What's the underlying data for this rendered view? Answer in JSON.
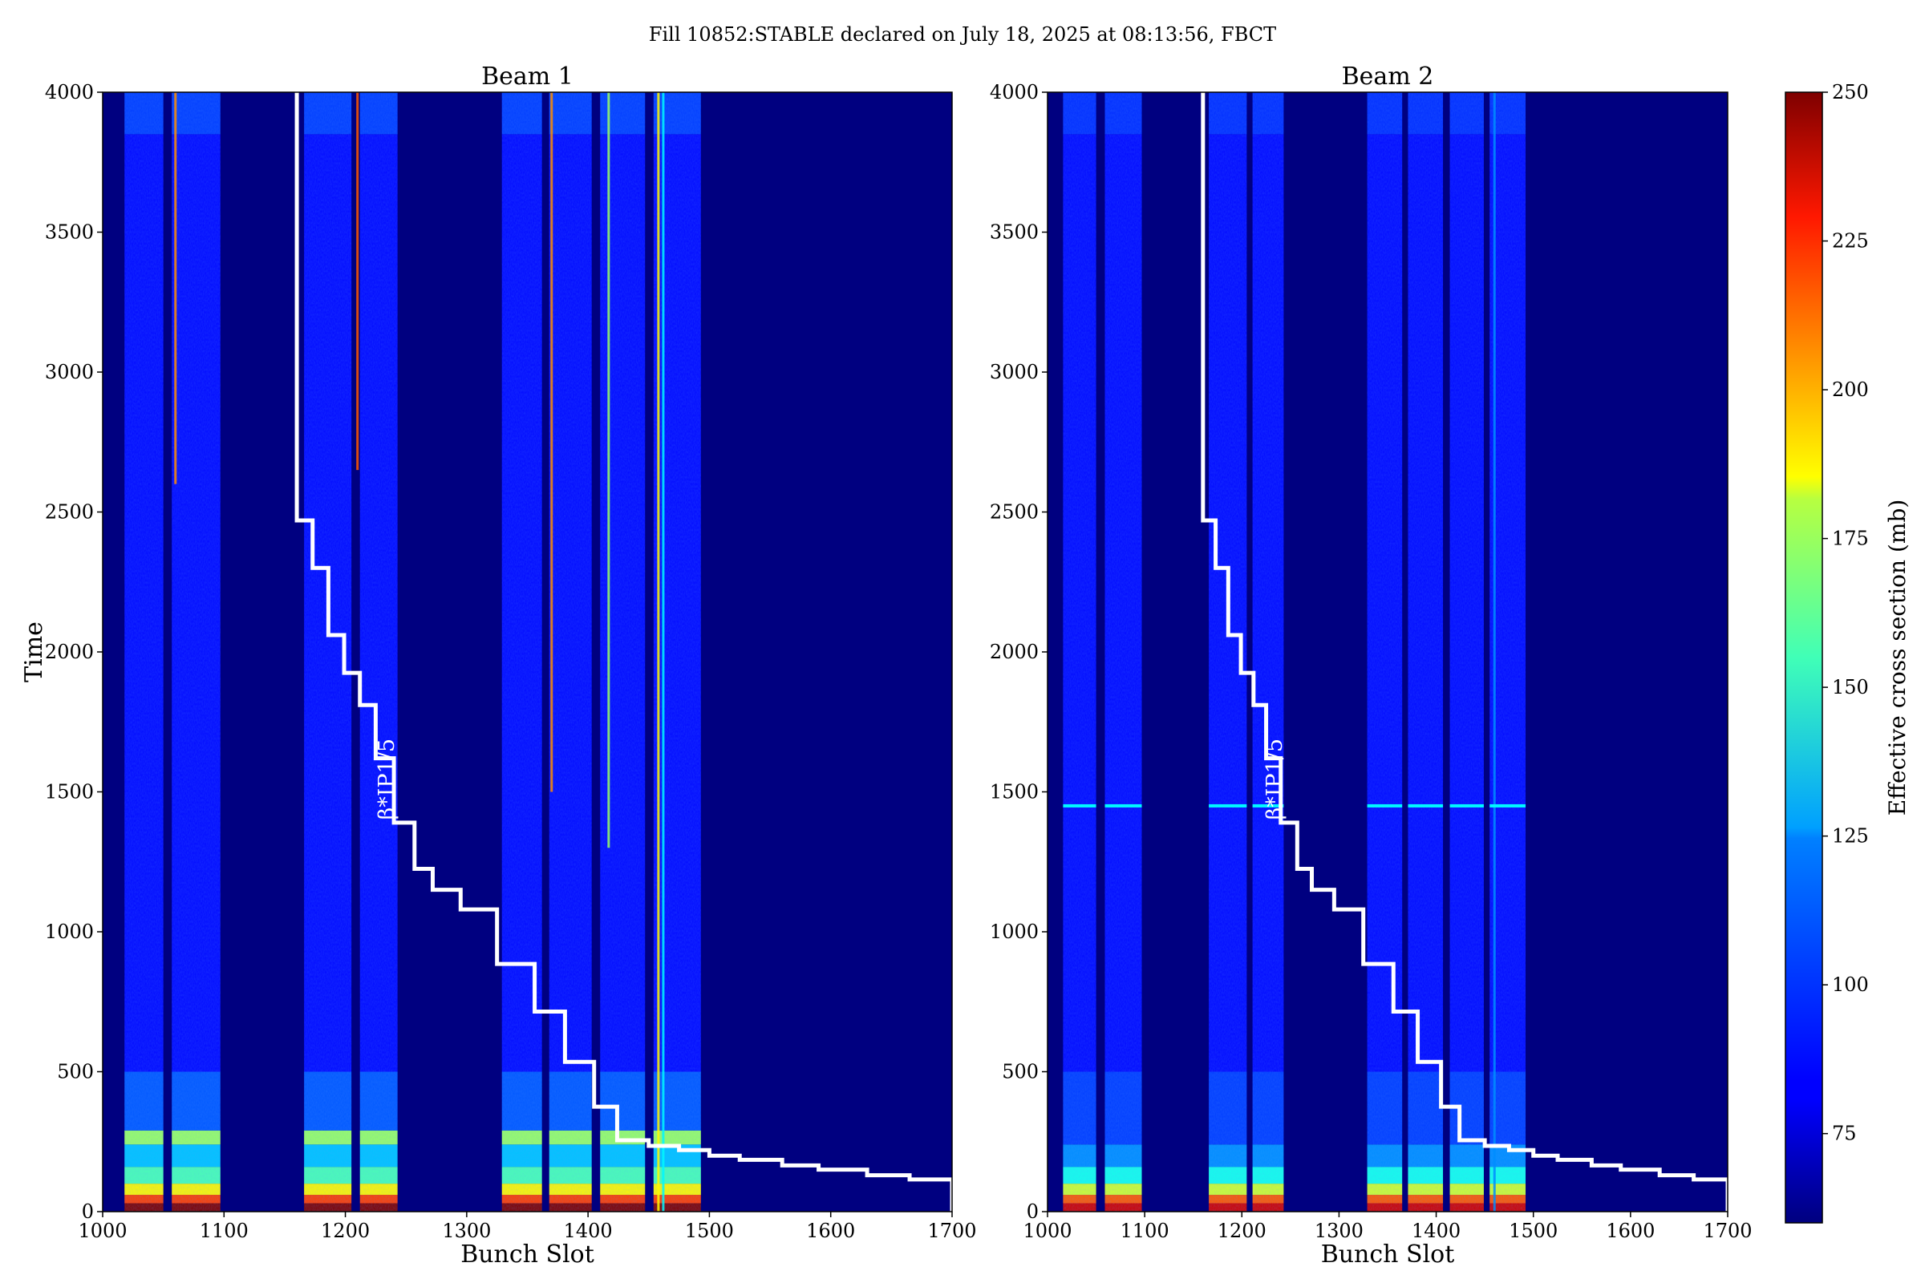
{
  "suptitle": "Fill 10852:STABLE declared on July 18, 2025 at 08:13:56, FBCT",
  "chart_data": {
    "type": "heatmap",
    "xlabel": "Bunch Slot",
    "ylabel": "Time",
    "xlim": [
      1000,
      1700
    ],
    "ylim": [
      0,
      4000
    ],
    "xticks": [
      "1000",
      "1100",
      "1200",
      "1300",
      "1400",
      "1500",
      "1600",
      "1700"
    ],
    "yticks": [
      "0",
      "500",
      "1000",
      "1500",
      "2000",
      "2500",
      "3000",
      "3500",
      "4000"
    ],
    "colormap": "jet",
    "background_color": "#000080",
    "colorbar": {
      "label": "Effective cross section (mb)",
      "range": [
        60,
        250
      ],
      "ticks": [
        "75",
        "100",
        "125",
        "150",
        "175",
        "200",
        "225",
        "250"
      ]
    },
    "beta_label": "β*IP1/5",
    "beta_curve": {
      "line_color": "#ffffff",
      "steps": [
        {
          "time": 4000,
          "slot": 1160
        },
        {
          "time": 2470,
          "slot": 1173
        },
        {
          "time": 2300,
          "slot": 1186
        },
        {
          "time": 2060,
          "slot": 1199
        },
        {
          "time": 1925,
          "slot": 1212
        },
        {
          "time": 1810,
          "slot": 1225
        },
        {
          "time": 1620,
          "slot": 1240
        },
        {
          "time": 1390,
          "slot": 1257
        },
        {
          "time": 1225,
          "slot": 1272
        },
        {
          "time": 1150,
          "slot": 1295
        },
        {
          "time": 1080,
          "slot": 1325
        },
        {
          "time": 885,
          "slot": 1356
        },
        {
          "time": 715,
          "slot": 1381
        },
        {
          "time": 535,
          "slot": 1405
        },
        {
          "time": 375,
          "slot": 1424
        },
        {
          "time": 255,
          "slot": 1450
        },
        {
          "time": 235,
          "slot": 1475
        },
        {
          "time": 220,
          "slot": 1500
        },
        {
          "time": 200,
          "slot": 1525
        },
        {
          "time": 185,
          "slot": 1560
        },
        {
          "time": 165,
          "slot": 1590
        },
        {
          "time": 150,
          "slot": 1630
        },
        {
          "time": 130,
          "slot": 1665
        },
        {
          "time": 115,
          "slot": 1700
        },
        {
          "time": 0,
          "slot": 1700
        }
      ]
    },
    "panels": [
      {
        "title": "Beam 1",
        "trains": [
          [
            1018,
            1050
          ],
          [
            1057,
            1097
          ],
          [
            1166,
            1205
          ],
          [
            1212,
            1243
          ],
          [
            1329,
            1362
          ],
          [
            1368,
            1403
          ],
          [
            1410,
            1447
          ],
          [
            1454,
            1493
          ]
        ],
        "hot_streaks": [
          {
            "slot": 1060,
            "from": 2600,
            "to": 4000,
            "value": 200
          },
          {
            "slot": 1210,
            "from": 2650,
            "to": 4000,
            "value": 210
          },
          {
            "slot": 1370,
            "from": 1500,
            "to": 4000,
            "value": 200
          },
          {
            "slot": 1417,
            "from": 1300,
            "to": 4000,
            "value": 160
          },
          {
            "slot": 1458,
            "from": 0,
            "to": 4000,
            "value": 180
          },
          {
            "slot": 1462,
            "from": 0,
            "to": 4000,
            "value": 130
          }
        ],
        "time_bands": [
          {
            "from": 0,
            "to": 30,
            "value": 250
          },
          {
            "from": 30,
            "to": 60,
            "value": 215
          },
          {
            "from": 60,
            "to": 100,
            "value": 180
          },
          {
            "from": 100,
            "to": 160,
            "value": 145
          },
          {
            "from": 160,
            "to": 240,
            "value": 120
          },
          {
            "from": 240,
            "to": 290,
            "value": 160
          },
          {
            "from": 290,
            "to": 500,
            "value": 100
          },
          {
            "from": 500,
            "to": 3850,
            "value": 85
          },
          {
            "from": 3850,
            "to": 4000,
            "value": 95
          }
        ]
      },
      {
        "title": "Beam 2",
        "trains": [
          [
            1016,
            1050
          ],
          [
            1059,
            1097
          ],
          [
            1166,
            1205
          ],
          [
            1211,
            1243
          ],
          [
            1329,
            1365
          ],
          [
            1371,
            1407
          ],
          [
            1414,
            1449
          ],
          [
            1455,
            1492
          ]
        ],
        "hot_streaks": [
          {
            "slot": 1460,
            "from": 0,
            "to": 4000,
            "value": 110
          }
        ],
        "flash_line": {
          "time": 1450,
          "value": 130
        },
        "time_bands": [
          {
            "from": 0,
            "to": 30,
            "value": 235
          },
          {
            "from": 30,
            "to": 60,
            "value": 210
          },
          {
            "from": 60,
            "to": 100,
            "value": 170
          },
          {
            "from": 100,
            "to": 160,
            "value": 135
          },
          {
            "from": 160,
            "to": 240,
            "value": 110
          },
          {
            "from": 240,
            "to": 500,
            "value": 95
          },
          {
            "from": 500,
            "to": 3850,
            "value": 85
          },
          {
            "from": 3850,
            "to": 4000,
            "value": 92
          }
        ]
      }
    ]
  }
}
